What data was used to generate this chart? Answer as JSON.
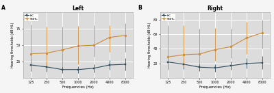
{
  "frequencies": [
    125,
    250,
    500,
    1000,
    2000,
    4000,
    8000
  ],
  "left": {
    "HC_mean": [
      20,
      17,
      13,
      13,
      15,
      20,
      21
    ],
    "HC_err_lo": [
      9,
      7,
      5,
      5,
      6,
      7,
      9
    ],
    "HC_err_hi": [
      9,
      7,
      5,
      5,
      6,
      7,
      9
    ],
    "SNHL_mean": [
      37,
      38,
      43,
      49,
      50,
      62,
      65
    ],
    "SNHL_err_lo": [
      25,
      22,
      25,
      28,
      18,
      22,
      25
    ],
    "SNHL_err_hi": [
      44,
      40,
      35,
      30,
      30,
      18,
      18
    ]
  },
  "right": {
    "HC_mean": [
      22,
      19,
      15,
      14,
      17,
      20,
      21
    ],
    "HC_err_lo": [
      9,
      7,
      5,
      5,
      6,
      7,
      9
    ],
    "HC_err_hi": [
      9,
      7,
      5,
      5,
      6,
      7,
      9
    ],
    "SNHL_mean": [
      29,
      32,
      33,
      39,
      43,
      55,
      62
    ],
    "SNHL_err_lo": [
      18,
      16,
      14,
      15,
      16,
      22,
      22
    ],
    "SNHL_err_hi": [
      43,
      40,
      35,
      30,
      25,
      22,
      18
    ]
  },
  "HC_color": "#2d4a5a",
  "SNHL_color": "#cc8833",
  "bg_color": "#dcdcdc",
  "fig_bg_color": "#f5f5f5",
  "grid_color": "#ffffff",
  "title_left": "Left",
  "title_right": "Right",
  "ylabel": "Hearing thresholds (dB HL)",
  "xlabel": "Frequencies (Hz)",
  "label_A": "A",
  "label_B": "B",
  "ylim_left": [
    0,
    100
  ],
  "ylim_right": [
    0,
    90
  ],
  "yticks_left": [
    25,
    50,
    75
  ],
  "yticks_right": [
    20,
    40,
    60,
    80
  ],
  "freq_labels": [
    "125",
    "250",
    "500",
    "1000",
    "2000",
    "4000",
    "8000"
  ]
}
